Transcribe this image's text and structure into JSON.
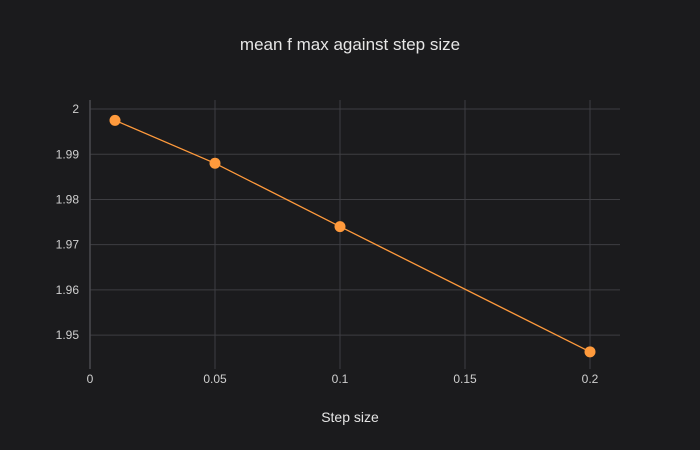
{
  "chart_data": {
    "type": "line",
    "title": "mean f max against step size",
    "xlabel": "Step size",
    "ylabel": "",
    "xlim": [
      -0.0,
      0.212
    ],
    "ylim": [
      1.9425,
      2.002
    ],
    "x_ticks": [
      0,
      0.05,
      0.1,
      0.15,
      0.2
    ],
    "x_tick_labels": [
      "0",
      "0.05",
      "0.1",
      "0.15",
      "0.2"
    ],
    "y_ticks": [
      1.95,
      1.96,
      1.97,
      1.98,
      1.99,
      2.0
    ],
    "y_tick_labels": [
      "1.95",
      "1.96",
      "1.97",
      "1.98",
      "1.99",
      "2"
    ],
    "grid": true,
    "series": [
      {
        "x": [
          0.01,
          0.05,
          0.1,
          0.2
        ],
        "y": [
          1.9975,
          1.988,
          1.974,
          1.9463
        ],
        "color": "#ff9a3c",
        "mode": "lines+markers"
      }
    ]
  }
}
